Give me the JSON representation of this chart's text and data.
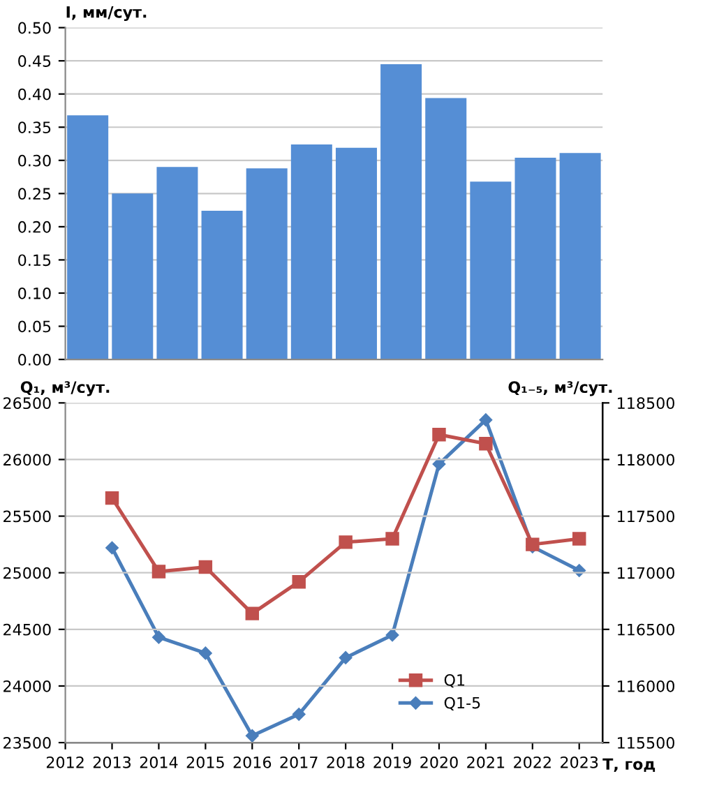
{
  "chart_data": [
    {
      "type": "bar",
      "ylabel": "I, мм/сут.",
      "categories": [
        null,
        null,
        null,
        null,
        null,
        null,
        null,
        null,
        null,
        null,
        null,
        null
      ],
      "values": [
        0.368,
        0.25,
        0.29,
        0.224,
        0.288,
        0.324,
        0.319,
        0.445,
        0.394,
        0.268,
        0.304,
        0.311
      ],
      "color": "#558ed5",
      "ylim": [
        0,
        0.5
      ],
      "yticks": [
        {
          "value": 0,
          "label": "0.00"
        },
        {
          "value": 0.05,
          "label": "0.05"
        },
        {
          "value": 0.1,
          "label": "0.10"
        },
        {
          "value": 0.15,
          "label": "0.15"
        },
        {
          "value": 0.2,
          "label": "0.20"
        },
        {
          "value": 0.25,
          "label": "0.25"
        },
        {
          "value": 0.3,
          "label": "0.30"
        },
        {
          "value": 0.35,
          "label": "0.35"
        },
        {
          "value": 0.4,
          "label": "0.40"
        },
        {
          "value": 0.45,
          "label": "0.45"
        },
        {
          "value": 0.5,
          "label": "0.50"
        }
      ],
      "grid": "y",
      "legend": false
    },
    {
      "type": "line",
      "ylabel": "Q₁, м³/сут.",
      "y2label": "Q₁₋₅, м³/сут.",
      "xlabel": "Т, год",
      "x": [
        2013,
        2014,
        2015,
        2016,
        2017,
        2018,
        2019,
        2020,
        2021,
        2022,
        2023
      ],
      "series": [
        {
          "name": "Q1",
          "color": "#c0504d",
          "marker": "square",
          "values": [
            25660,
            25010,
            25050,
            24640,
            24920,
            25270,
            25300,
            26220,
            26140,
            25250,
            25300
          ]
        },
        {
          "name": "Q1-5",
          "color": "#4a7ebb",
          "marker": "diamond",
          "axis": "y2",
          "values": [
            117220,
            116430,
            116290,
            115560,
            115750,
            116250,
            116450,
            117960,
            118350,
            117230,
            117020
          ]
        }
      ],
      "xlim": [
        2012,
        2023.5
      ],
      "xticks": [
        2012,
        2013,
        2014,
        2015,
        2016,
        2017,
        2018,
        2019,
        2020,
        2021,
        2022,
        2023
      ],
      "ylim": [
        23500,
        26500
      ],
      "yticks": [
        23500,
        24000,
        24500,
        25000,
        25500,
        26000,
        26500
      ],
      "y2lim": [
        115500,
        118500
      ],
      "y2ticks": [
        115500,
        116000,
        116500,
        117000,
        117500,
        118000,
        118500
      ],
      "grid": "y",
      "legend": "bottom right"
    }
  ]
}
